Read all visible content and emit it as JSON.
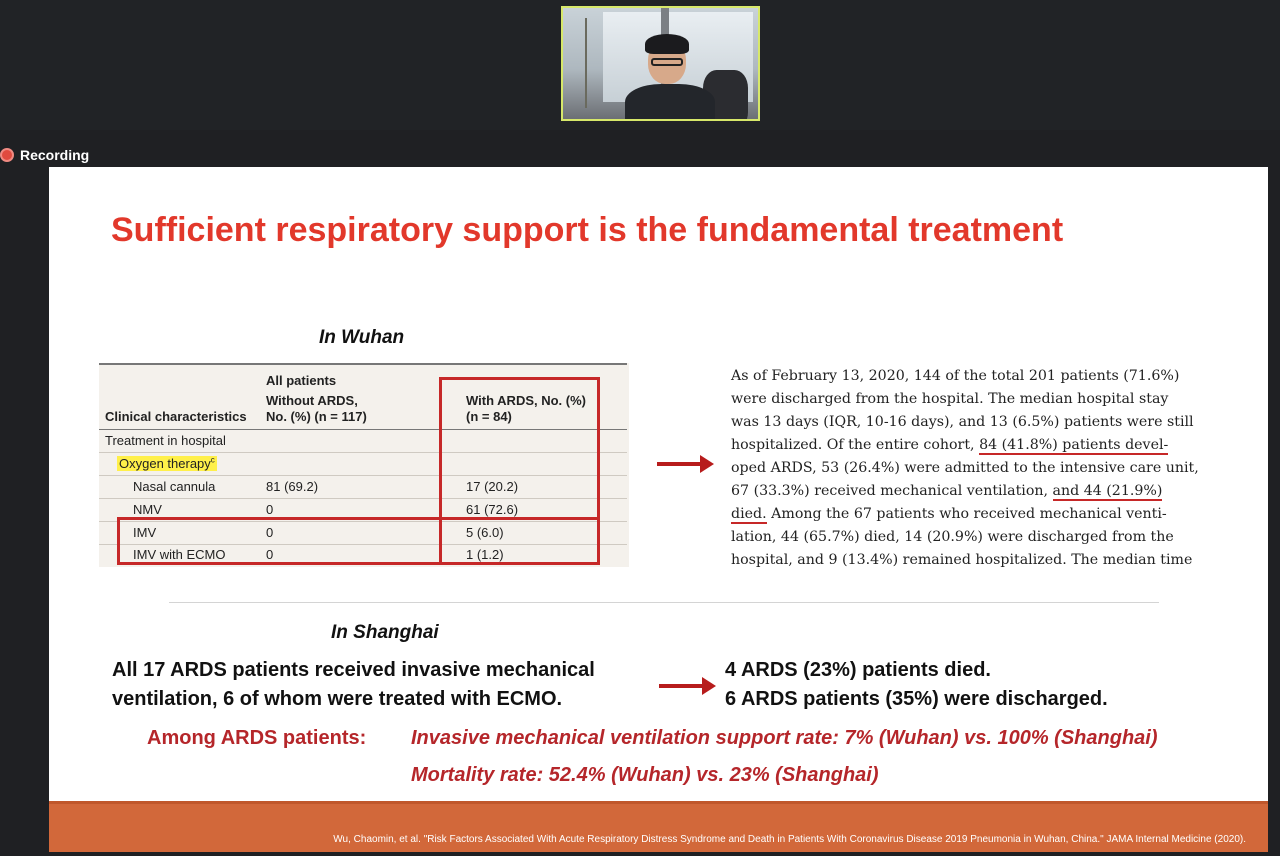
{
  "meeting": {
    "recording_label": "Recording"
  },
  "slide": {
    "title": "Sufficient respiratory support is the fundamental treatment",
    "wuhan": {
      "label": "In Wuhan",
      "table": {
        "header_group": "All patients",
        "col_characteristics": "Clinical characteristics",
        "col_without_1": "Without ARDS,",
        "col_without_2": "No. (%) (n = 117)",
        "col_with_1": "With ARDS, No. (%)",
        "col_with_2": "(n = 84)",
        "section": "Treatment in hospital",
        "subsection": "Oxygen therapy",
        "subsection_sup": "c",
        "rows": [
          {
            "label": "Nasal cannula",
            "without": "81 (69.2)",
            "with": "17 (20.2)"
          },
          {
            "label": "NMV",
            "without": "0",
            "with": "61 (72.6)"
          },
          {
            "label": "IMV",
            "without": "0",
            "with": "5 (6.0)"
          },
          {
            "label": "IMV with ECMO",
            "without": "0",
            "with": "1 (1.2)"
          }
        ]
      },
      "paper_lines": [
        "As of February 13, 2020, 144 of the total 201 patients (71.6%)",
        "were discharged from the hospital. The median hospital stay",
        "was 13 days (IQR, 10-16 days), and 13 (6.5%) patients were still",
        "hospitalized. Of the entire cohort, ",
        "84 (41.8%) patients devel-",
        "oped ARDS, 53 (26.4%) were admitted to the intensive care unit,",
        "67 (33.3%) received mechanical ventilation, ",
        "and 44 (21.9%)",
        "died.",
        " Among the 67 patients who received mechanical venti-",
        "lation, 44 (65.7%) died, 14 (20.9%) were discharged from the",
        "hospital, and 9 (13.4%) remained hospitalized. The median time"
      ]
    },
    "shanghai": {
      "label": "In Shanghai",
      "left_line1": "All 17 ARDS patients received invasive mechanical",
      "left_line2": "ventilation, 6 of whom were treated with ECMO.",
      "right_line1": "4 ARDS (23%) patients died.",
      "right_line2": "6 ARDS patients (35%) were discharged."
    },
    "summary": {
      "label": "Among ARDS patients:",
      "line1": "Invasive mechanical ventilation support rate:  7% (Wuhan) vs. 100% (Shanghai)",
      "line2": "Mortality rate: 52.4% (Wuhan) vs. 23% (Shanghai)"
    },
    "citation": "Wu, Chaomin, et al. \"Risk Factors Associated With Acute Respiratory Distress Syndrome and Death in Patients With Coronavirus Disease 2019 Pneumonia in Wuhan, China.\" JAMA Internal Medicine (2020)."
  },
  "colors": {
    "title_red": "#e2382b",
    "accent_red": "#b5262a",
    "footer_orange": "#d2683a",
    "highlight_yellow": "#fff04a",
    "speaker_border": "#d7e86a"
  }
}
